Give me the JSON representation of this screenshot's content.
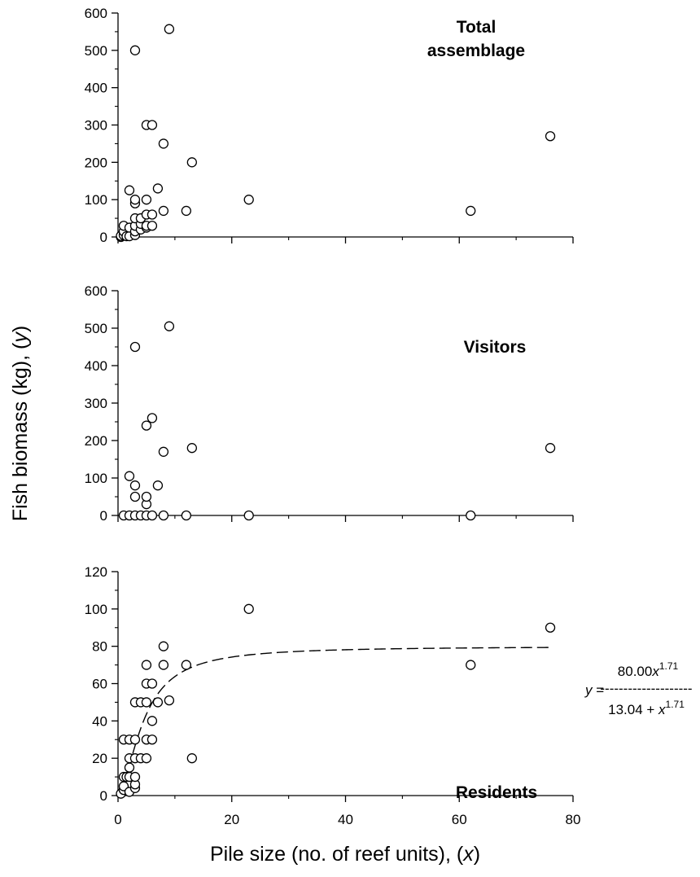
{
  "chart_data": [
    {
      "type": "scatter",
      "title": "",
      "panel_label": [
        "Total",
        "assemblage"
      ],
      "xlabel": "",
      "ylabel": "",
      "xlim": [
        0,
        80
      ],
      "ylim": [
        0,
        600
      ],
      "yticks": [
        0,
        100,
        200,
        300,
        400,
        500,
        600
      ],
      "ytick_labels": [
        "0",
        "100",
        "200",
        "300",
        "400",
        "500",
        "600"
      ],
      "xticks": [
        0,
        20,
        40,
        60,
        80
      ],
      "xtick_labels": [],
      "grid": false,
      "points": [
        [
          0.5,
          0
        ],
        [
          0.5,
          3
        ],
        [
          1,
          5
        ],
        [
          1,
          15
        ],
        [
          1,
          30
        ],
        [
          1.5,
          2
        ],
        [
          2,
          2
        ],
        [
          2,
          25
        ],
        [
          2,
          125
        ],
        [
          3,
          5
        ],
        [
          3,
          15
        ],
        [
          3,
          30
        ],
        [
          3,
          50
        ],
        [
          3,
          90
        ],
        [
          3,
          100
        ],
        [
          3,
          500
        ],
        [
          4,
          20
        ],
        [
          4,
          35
        ],
        [
          4,
          50
        ],
        [
          5,
          25
        ],
        [
          5,
          30
        ],
        [
          5,
          60
        ],
        [
          5,
          100
        ],
        [
          5,
          300
        ],
        [
          6,
          30
        ],
        [
          6,
          60
        ],
        [
          6,
          300
        ],
        [
          7,
          130
        ],
        [
          8,
          70
        ],
        [
          8,
          250
        ],
        [
          9,
          557
        ],
        [
          12,
          70
        ],
        [
          13,
          200
        ],
        [
          23,
          100
        ],
        [
          62,
          70
        ],
        [
          76,
          270
        ]
      ]
    },
    {
      "type": "scatter",
      "title": "",
      "panel_label": [
        "Visitors"
      ],
      "xlabel": "",
      "ylabel": "",
      "xlim": [
        0,
        80
      ],
      "ylim": [
        0,
        600
      ],
      "yticks": [
        0,
        100,
        200,
        300,
        400,
        500,
        600
      ],
      "ytick_labels": [
        "0",
        "100",
        "200",
        "300",
        "400",
        "500",
        "600"
      ],
      "xticks": [
        0,
        20,
        40,
        60,
        80
      ],
      "xtick_labels": [],
      "grid": false,
      "points": [
        [
          1,
          0
        ],
        [
          2,
          0
        ],
        [
          2,
          105
        ],
        [
          3,
          0
        ],
        [
          3,
          50
        ],
        [
          3,
          80
        ],
        [
          3,
          450
        ],
        [
          4,
          0
        ],
        [
          5,
          0
        ],
        [
          5,
          30
        ],
        [
          5,
          50
        ],
        [
          5,
          240
        ],
        [
          6,
          0
        ],
        [
          6,
          260
        ],
        [
          7,
          80
        ],
        [
          8,
          0
        ],
        [
          8,
          170
        ],
        [
          9,
          505
        ],
        [
          12,
          0
        ],
        [
          13,
          180
        ],
        [
          23,
          0
        ],
        [
          62,
          0
        ],
        [
          76,
          180
        ]
      ]
    },
    {
      "type": "scatter",
      "title": "",
      "panel_label": [
        "Residents"
      ],
      "xlabel": "",
      "ylabel": "",
      "xlim": [
        0,
        80
      ],
      "ylim": [
        0,
        120
      ],
      "yticks": [
        0,
        20,
        40,
        60,
        80,
        100,
        120
      ],
      "ytick_labels": [
        "0",
        "20",
        "40",
        "60",
        "80",
        "100",
        "120"
      ],
      "xticks": [
        0,
        20,
        40,
        60,
        80
      ],
      "xtick_labels": [
        "0",
        "20",
        "40",
        "60",
        "80"
      ],
      "grid": false,
      "points": [
        [
          0.5,
          1
        ],
        [
          1,
          3
        ],
        [
          1,
          5
        ],
        [
          1,
          10
        ],
        [
          1,
          30
        ],
        [
          1.5,
          10
        ],
        [
          2,
          2
        ],
        [
          2,
          10
        ],
        [
          2,
          15
        ],
        [
          2,
          20
        ],
        [
          2,
          30
        ],
        [
          3,
          4
        ],
        [
          3,
          6
        ],
        [
          3,
          10
        ],
        [
          3,
          20
        ],
        [
          3,
          30
        ],
        [
          3,
          50
        ],
        [
          4,
          20
        ],
        [
          4,
          50
        ],
        [
          5,
          20
        ],
        [
          5,
          30
        ],
        [
          5,
          50
        ],
        [
          5,
          60
        ],
        [
          5,
          70
        ],
        [
          6,
          30
        ],
        [
          6,
          40
        ],
        [
          6,
          60
        ],
        [
          7,
          50
        ],
        [
          8,
          70
        ],
        [
          8,
          80
        ],
        [
          9,
          51
        ],
        [
          12,
          70
        ],
        [
          13,
          20
        ],
        [
          23,
          100
        ],
        [
          62,
          70
        ],
        [
          76,
          90
        ]
      ],
      "fit_curve": {
        "style": "dashed",
        "a": 80.0,
        "b": 13.04,
        "p": 1.71,
        "x_range": [
          1,
          76
        ]
      }
    }
  ],
  "axes": {
    "ylabel_main": "Fish biomass (kg), (",
    "ylabel_var": "y",
    "ylabel_end": ")",
    "xlabel_main": "Pile size (no. of reef units), (",
    "xlabel_var": "x",
    "xlabel_end": ")"
  },
  "equation": {
    "lhs_var": "y",
    "eq": "=",
    "numerator_coef": "80.00",
    "numerator_var": "x",
    "numerator_exp": "1.71",
    "dashes": "--------------------",
    "denominator_const": "13.04 + ",
    "denominator_var": "x",
    "denominator_exp": "1.71"
  }
}
